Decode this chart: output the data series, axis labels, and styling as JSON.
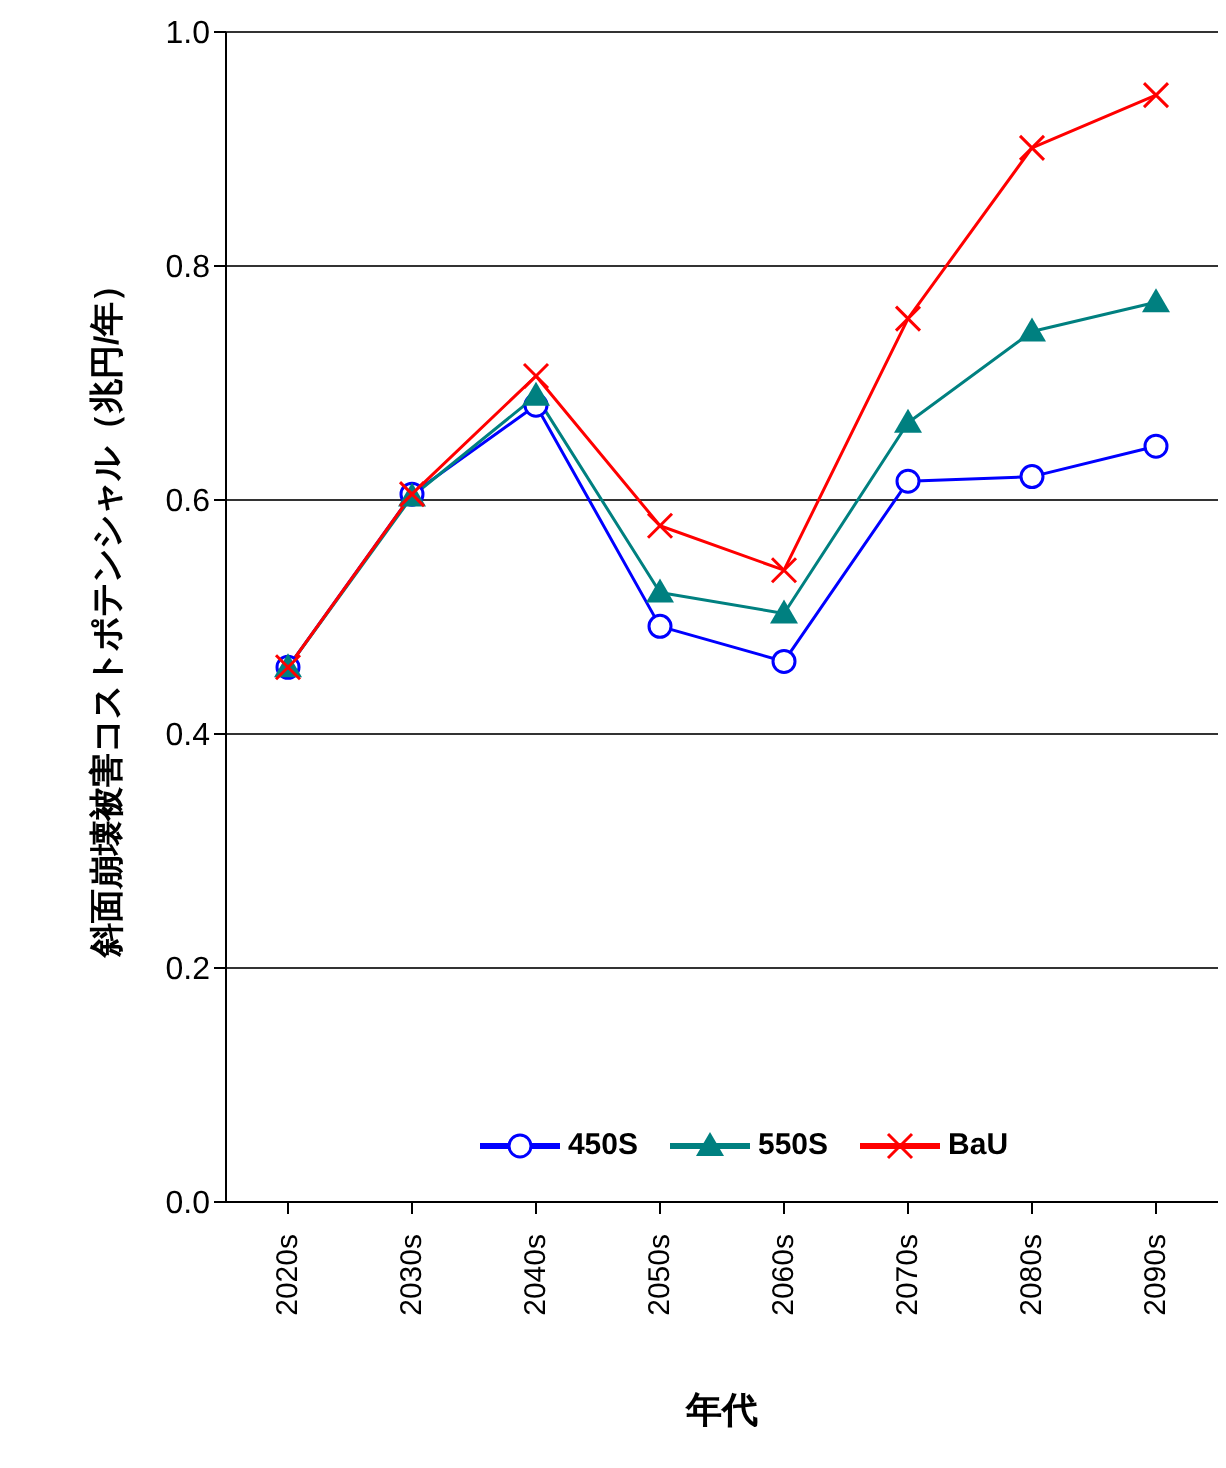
{
  "chart_data": {
    "type": "line",
    "xlabel": "年代",
    "ylabel": "斜面崩壊被害コストポテンシャル（兆円/年）",
    "categories": [
      "2020s",
      "2030s",
      "2040s",
      "2050s",
      "2060s",
      "2070s",
      "2080s",
      "2090s"
    ],
    "series": [
      {
        "name": "450S",
        "color": "#0000ff",
        "marker": "circle",
        "values": [
          0.457,
          0.605,
          0.681,
          0.492,
          0.462,
          0.616,
          0.62,
          0.646
        ]
      },
      {
        "name": "550S",
        "color": "#008080",
        "marker": "triangle",
        "values": [
          0.457,
          0.603,
          0.689,
          0.521,
          0.503,
          0.666,
          0.744,
          0.769
        ]
      },
      {
        "name": "BaU",
        "color": "#ff0000",
        "marker": "cross",
        "values": [
          0.457,
          0.605,
          0.706,
          0.578,
          0.54,
          0.755,
          0.901,
          0.946
        ]
      }
    ],
    "ylim": [
      0,
      1
    ],
    "yticks": [
      {
        "value": 0,
        "label": "0.0"
      },
      {
        "value": 0.2,
        "label": "0.2"
      },
      {
        "value": 0.4,
        "label": "0.4"
      },
      {
        "value": 0.6,
        "label": "0.6"
      },
      {
        "value": 0.8,
        "label": "0.8"
      },
      {
        "value": 1,
        "label": "1.0"
      }
    ],
    "grid": "y",
    "legend": "bottom"
  }
}
